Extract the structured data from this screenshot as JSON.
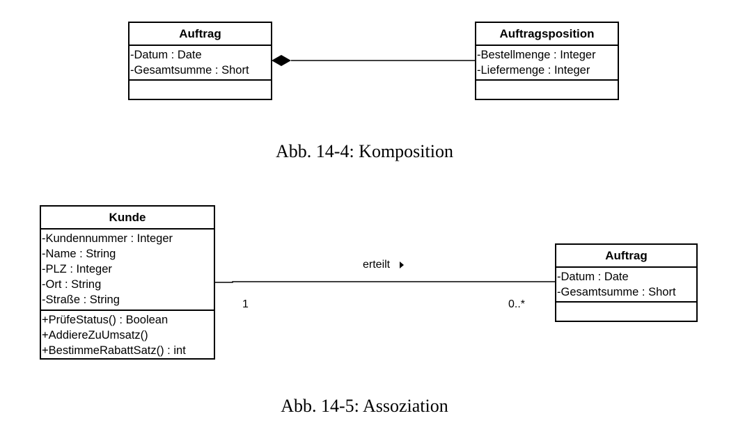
{
  "composition": {
    "whole": {
      "name": "Auftrag",
      "attributes": [
        "-Datum : Date",
        "-Gesamtsumme : Short"
      ],
      "operations": []
    },
    "part": {
      "name": "Auftragsposition",
      "attributes": [
        "-Bestellmenge : Integer",
        "-Liefermenge : Integer"
      ],
      "operations": []
    },
    "caption": "Abb. 14-4: Komposition"
  },
  "association": {
    "source": {
      "name": "Kunde",
      "attributes": [
        "-Kundennummer : Integer",
        "-Name : String",
        "-PLZ : Integer",
        "-Ort : String",
        "-Straße : String"
      ],
      "operations": [
        "+PrüfeStatus() : Boolean",
        "+AddiereZuUmsatz()",
        "+BestimmeRabattSatz() : int"
      ]
    },
    "target": {
      "name": "Auftrag",
      "attributes": [
        "-Datum : Date",
        "-Gesamtsumme : Short"
      ],
      "operations": []
    },
    "label": "erteilt",
    "source_multiplicity": "1",
    "target_multiplicity": "0..*",
    "caption": "Abb. 14-5: Assoziation"
  }
}
